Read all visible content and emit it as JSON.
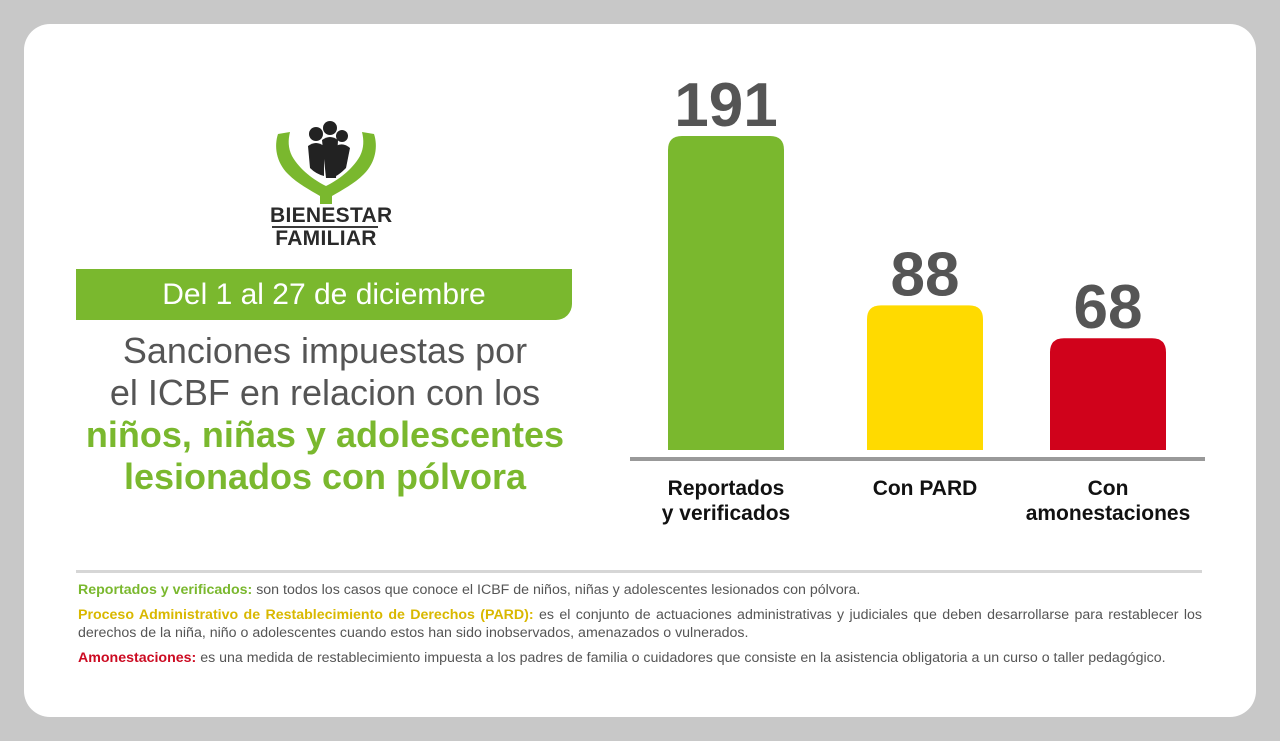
{
  "logo": {
    "line1": "BIENESTAR",
    "line2": "FAMILIAR"
  },
  "date_range": "Del 1 al 27 de diciembre",
  "headline": {
    "line1": "Sanciones impuestas por",
    "line2": "el ICBF en relacion con los",
    "line3": "niños, niñas y adolescentes",
    "line4": "lesionados con pólvora"
  },
  "colors": {
    "green": "#7ab82e",
    "yellow": "#ffda00",
    "red": "#d0021b",
    "label_gray": "#555555"
  },
  "chart_data": {
    "type": "bar",
    "categories": [
      [
        "Reportados",
        "y verificados"
      ],
      [
        "Con PARD"
      ],
      [
        "Con",
        "amonestaciones"
      ]
    ],
    "values": [
      191,
      88,
      68
    ],
    "colors": [
      "#7ab82e",
      "#ffda00",
      "#d0021b"
    ],
    "data_labels": [
      "191",
      "88",
      "68"
    ]
  },
  "notes": [
    {
      "term": "Reportados y verificados:",
      "text": " son todos los casos que conoce el ICBF de niños, niñas y adolescentes lesionados con pólvora."
    },
    {
      "term": "Proceso Administrativo de Restablecimiento de Derechos (PARD):",
      "text": " es el conjunto de actuaciones administrativas y judiciales que deben desarrollarse para restablecer los derechos de la niña, niño o adolescentes cuando estos han sido inobservados, amenazados o vulnerados."
    },
    {
      "term": "Amonestaciones:",
      "text": " es una medida de restablecimiento impuesta a los padres de familia o cuidadores que consiste en la asistencia obligatoria a un curso o taller pedagógico."
    }
  ]
}
